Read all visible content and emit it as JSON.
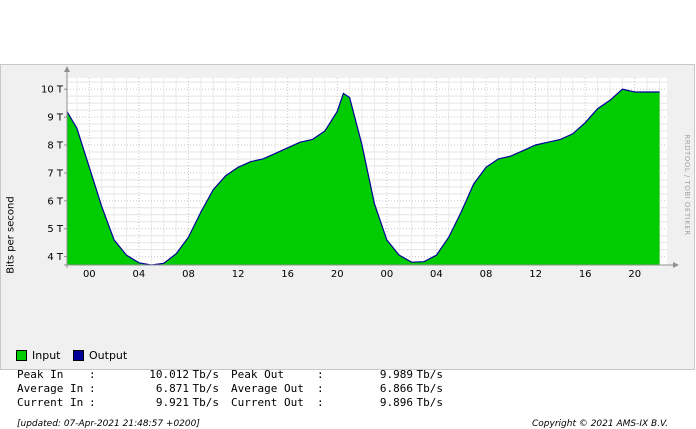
{
  "chart_data": {
    "type": "area",
    "title": "",
    "ylabel": "Bits per second",
    "y_unit": "T",
    "ylim": [
      3.7,
      10.4
    ],
    "y_ticks": [
      4,
      5,
      6,
      7,
      8,
      9,
      10
    ],
    "y_tick_labels": [
      "4 T",
      "5 T",
      "6 T",
      "7 T",
      "8 T",
      "9 T",
      "10 T"
    ],
    "x_tick_labels": [
      "00",
      "04",
      "08",
      "12",
      "16",
      "20",
      "00",
      "04",
      "08",
      "12",
      "16",
      "20"
    ],
    "grid": true,
    "legend_position": "bottom-left",
    "series": [
      {
        "name": "Input",
        "color": "#00cc00",
        "x": [
          -1.8,
          -1,
          0,
          1,
          2,
          3,
          4,
          5,
          6,
          7,
          8,
          9,
          10,
          11,
          12,
          13,
          14,
          15,
          16,
          17,
          18,
          19,
          20,
          20.5,
          21,
          22,
          23,
          24,
          25,
          26,
          27,
          28,
          29,
          30,
          31,
          32,
          33,
          34,
          35,
          36,
          37,
          38,
          39,
          40,
          41,
          42,
          43,
          44,
          45,
          46
        ],
        "values": [
          9.2,
          8.6,
          7.2,
          5.8,
          4.6,
          4.05,
          3.78,
          3.7,
          3.76,
          4.1,
          4.7,
          5.6,
          6.4,
          6.9,
          7.2,
          7.4,
          7.5,
          7.7,
          7.9,
          8.1,
          8.2,
          8.5,
          9.2,
          9.85,
          9.7,
          8.0,
          5.9,
          4.6,
          4.05,
          3.8,
          3.82,
          4.05,
          4.7,
          5.6,
          6.6,
          7.2,
          7.5,
          7.6,
          7.8,
          8.0,
          8.1,
          8.2,
          8.4,
          8.8,
          9.3,
          9.6,
          10.0,
          9.9,
          9.9,
          9.9
        ]
      },
      {
        "name": "Output",
        "color": "#000099",
        "x": [
          -1.8,
          -1,
          0,
          1,
          2,
          3,
          4,
          5,
          6,
          7,
          8,
          9,
          10,
          11,
          12,
          13,
          14,
          15,
          16,
          17,
          18,
          19,
          20,
          20.5,
          21,
          22,
          23,
          24,
          25,
          26,
          27,
          28,
          29,
          30,
          31,
          32,
          33,
          34,
          35,
          36,
          37,
          38,
          39,
          40,
          41,
          42,
          43,
          44,
          45,
          46
        ],
        "values": [
          9.2,
          8.6,
          7.2,
          5.8,
          4.6,
          4.05,
          3.78,
          3.7,
          3.76,
          4.1,
          4.7,
          5.6,
          6.4,
          6.9,
          7.2,
          7.4,
          7.5,
          7.7,
          7.9,
          8.1,
          8.2,
          8.5,
          9.2,
          9.85,
          9.7,
          8.0,
          5.9,
          4.6,
          4.05,
          3.8,
          3.82,
          4.05,
          4.7,
          5.6,
          6.6,
          7.2,
          7.5,
          7.6,
          7.8,
          8.0,
          8.1,
          8.2,
          8.4,
          8.8,
          9.3,
          9.6,
          10.0,
          9.9,
          9.9,
          9.9
        ]
      }
    ]
  },
  "legend": [
    {
      "label": "Input",
      "color": "#00cc00"
    },
    {
      "label": "Output",
      "color": "#000099"
    }
  ],
  "stats": {
    "peak_in_label": "Peak In",
    "peak_in_value": "10.012",
    "average_in_label": "Average In",
    "average_in_value": "6.871",
    "current_in_label": "Current In",
    "current_in_value": "9.921",
    "peak_out_label": "Peak Out",
    "peak_out_value": "9.989",
    "average_out_label": "Average Out",
    "average_out_value": "6.866",
    "current_out_label": "Current Out",
    "current_out_value": "9.896",
    "separator": ":",
    "unit": "Tb/s"
  },
  "updated_text": "[updated: 07-Apr-2021 21:48:57 +0200]",
  "copyright_text": "Copyright © 2021 AMS-IX B.V.",
  "watermark_text": "RRDTOOL / TOBI OETIKER"
}
